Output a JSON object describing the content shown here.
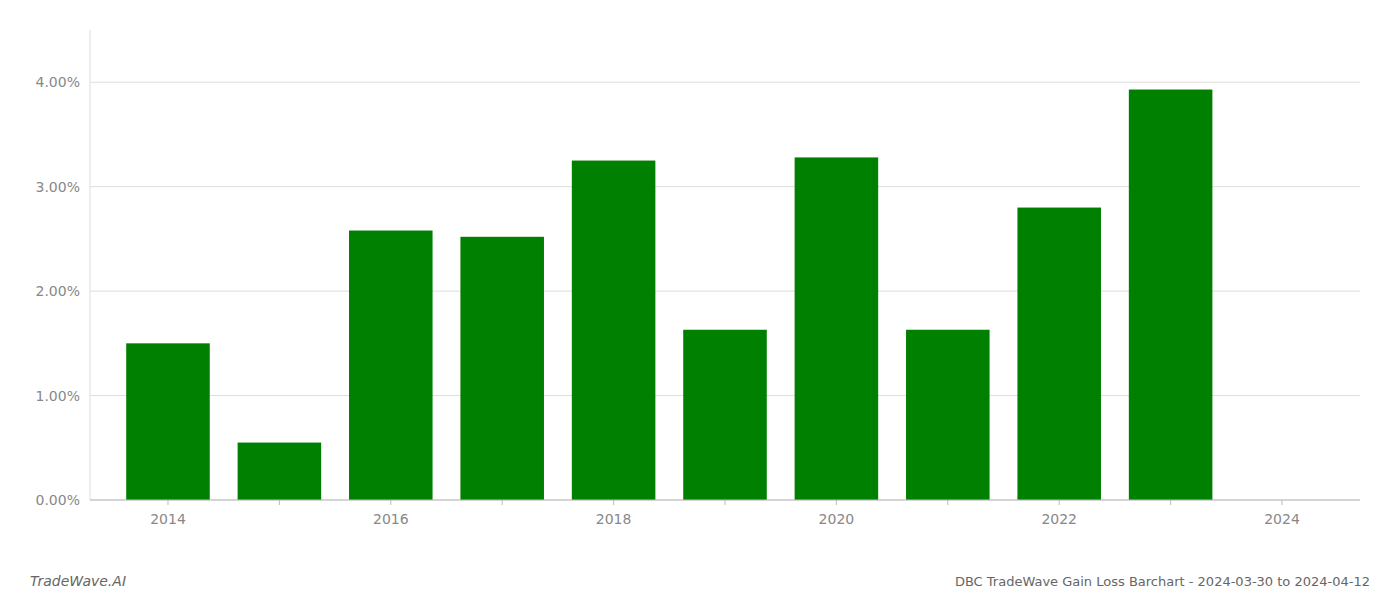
{
  "chart_data": {
    "type": "bar",
    "title": "DBC TradeWave Gain Loss Barchart - 2024-03-30 to 2024-04-12",
    "annotations": [
      "TradeWave.AI"
    ],
    "x": [
      2014,
      2015,
      2016,
      2017,
      2018,
      2019,
      2020,
      2021,
      2022,
      2023
    ],
    "values": [
      0.015,
      0.0055,
      0.0258,
      0.0252,
      0.0325,
      0.0163,
      0.0328,
      0.0163,
      0.028,
      0.0393
    ],
    "color": "#008000",
    "xlim": [
      2013.3,
      2024.7
    ],
    "xticks": [
      2014,
      {
        "value": 2015,
        "label": null
      },
      2016,
      {
        "value": 2017,
        "label": null
      },
      2018,
      {
        "value": 2019,
        "label": null
      },
      2020,
      {
        "value": 2021,
        "label": null
      },
      2022,
      {
        "value": 2023,
        "label": null
      },
      2024
    ],
    "ylim": [
      0,
      0.045
    ],
    "yticks": [
      {
        "value": 0.0,
        "label": "0.00%"
      },
      {
        "value": 0.01,
        "label": "1.00%"
      },
      {
        "value": 0.02,
        "label": "2.00%"
      },
      {
        "value": 0.03,
        "label": "3.00%"
      },
      {
        "value": 0.04,
        "label": "4.00%"
      }
    ],
    "grid": true
  }
}
